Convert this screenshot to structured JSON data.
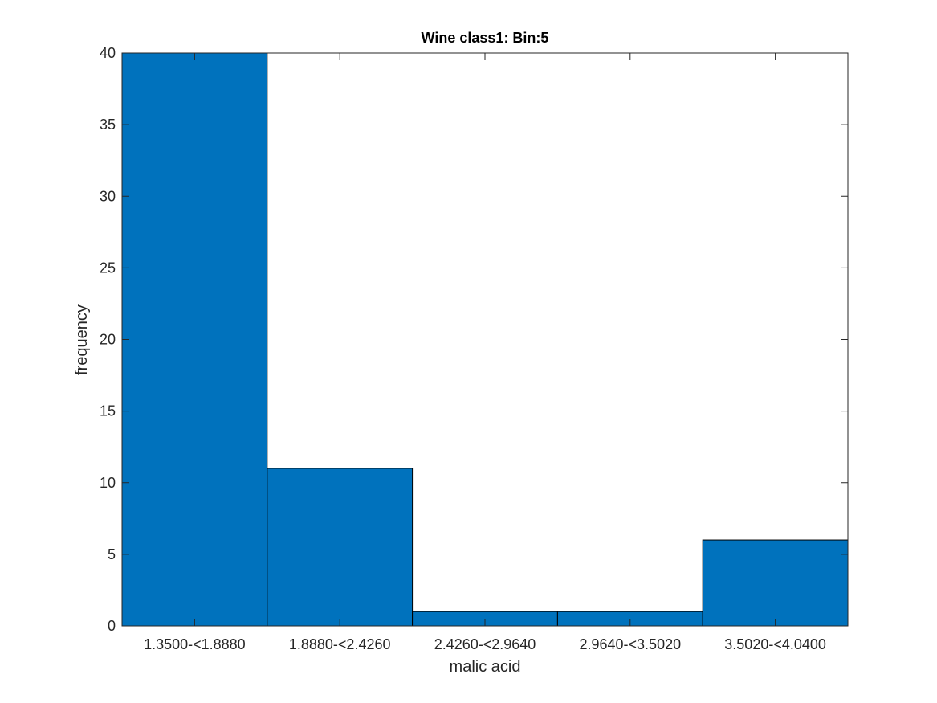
{
  "chart_data": {
    "type": "bar",
    "title": "Wine class1: Bin:5",
    "xlabel": "malic acid",
    "ylabel": "frequency",
    "categories": [
      "1.3500-<1.8880",
      "1.8880-<2.4260",
      "2.4260-<2.9640",
      "2.9640-<3.5020",
      "3.5020-<4.0400"
    ],
    "values": [
      40,
      11,
      1,
      1,
      6
    ],
    "ylim": [
      0,
      40
    ],
    "yticks": [
      0,
      5,
      10,
      15,
      20,
      25,
      30,
      35,
      40
    ],
    "bar_color": "#0072BD",
    "bar_edge_color": "#000000",
    "grid": false,
    "box": true
  }
}
